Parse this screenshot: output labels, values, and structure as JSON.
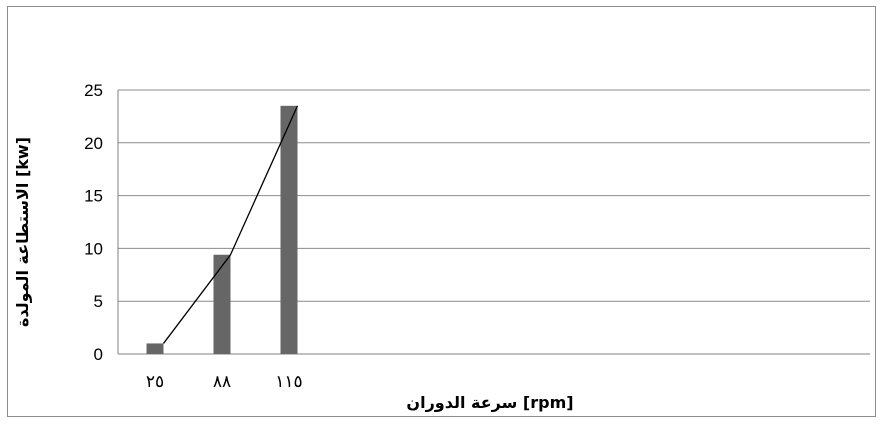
{
  "chart_data": {
    "type": "bar",
    "categories": [
      "٢٥",
      "٨٨",
      "١١٥"
    ],
    "values": [
      1,
      9.4,
      23.5
    ],
    "line_values": [
      1,
      9.4,
      23.5
    ],
    "xlabel": "سرعة الدوران [rpm]",
    "ylabel": "الاستطاعة المولدة [kw]",
    "ylim": [
      0,
      25
    ],
    "yticks": [
      0,
      5,
      10,
      15,
      20,
      25
    ],
    "grid": true,
    "legend": "none",
    "bar_color": "#666666",
    "line_color": "#000000"
  }
}
